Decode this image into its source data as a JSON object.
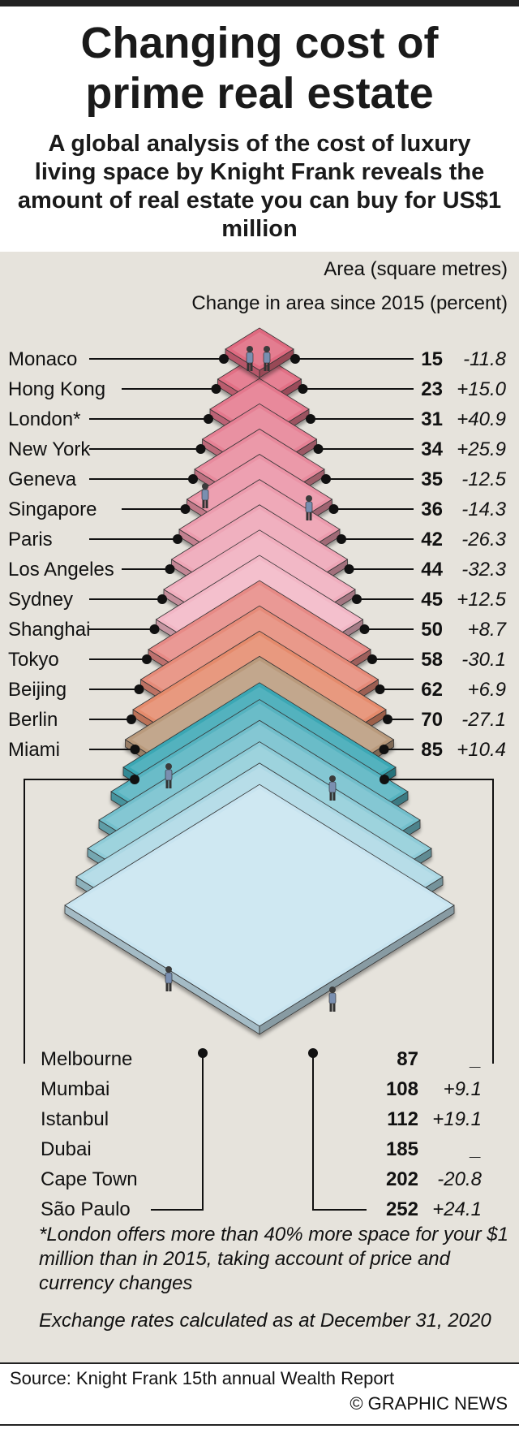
{
  "header": {
    "title_line1": "Changing cost of",
    "title_line2": "prime real estate",
    "subtitle": "A global analysis of the cost of luxury living space by Knight Frank reveals the amount of real estate you can buy for US$1 million"
  },
  "legend": {
    "area_label": "Area (square metres)",
    "change_label": "Change in area since 2015 (percent)"
  },
  "notes": {
    "london": "*London offers more than 40% more space for your $1 million than in 2015, taking account of price and currency changes",
    "exchange": "Exchange rates calculated as at December 31, 2020"
  },
  "footer": {
    "source": "Source: Knight Frank 15th annual Wealth Report",
    "credit": "© GRAPHIC NEWS"
  },
  "chart_data": {
    "type": "table",
    "columns": [
      "City",
      "Area (square metres)",
      "Change in area since 2015 (percent)"
    ],
    "rows": [
      {
        "city": "Monaco",
        "area": 15,
        "change": "-11.8"
      },
      {
        "city": "Hong Kong",
        "area": 23,
        "change": "+15.0"
      },
      {
        "city": "London*",
        "area": 31,
        "change": "+40.9"
      },
      {
        "city": "New York",
        "area": 34,
        "change": "+25.9"
      },
      {
        "city": "Geneva",
        "area": 35,
        "change": "-12.5"
      },
      {
        "city": "Singapore",
        "area": 36,
        "change": "-14.3"
      },
      {
        "city": "Paris",
        "area": 42,
        "change": "-26.3"
      },
      {
        "city": "Los Angeles",
        "area": 44,
        "change": "-32.3"
      },
      {
        "city": "Sydney",
        "area": 45,
        "change": "+12.5"
      },
      {
        "city": "Shanghai",
        "area": 50,
        "change": "+8.7"
      },
      {
        "city": "Tokyo",
        "area": 58,
        "change": "-30.1"
      },
      {
        "city": "Beijing",
        "area": 62,
        "change": "+6.9"
      },
      {
        "city": "Berlin",
        "area": 70,
        "change": "-27.1"
      },
      {
        "city": "Miami",
        "area": 85,
        "change": "+10.4"
      },
      {
        "city": "Melbourne",
        "area": 87,
        "change": "_"
      },
      {
        "city": "Mumbai",
        "area": 108,
        "change": "+9.1"
      },
      {
        "city": "Istanbul",
        "area": 112,
        "change": "+19.1"
      },
      {
        "city": "Dubai",
        "area": 185,
        "change": "_"
      },
      {
        "city": "Cape Town",
        "area": 202,
        "change": "-20.8"
      },
      {
        "city": "São Paulo",
        "area": 252,
        "change": "+24.1"
      }
    ]
  }
}
